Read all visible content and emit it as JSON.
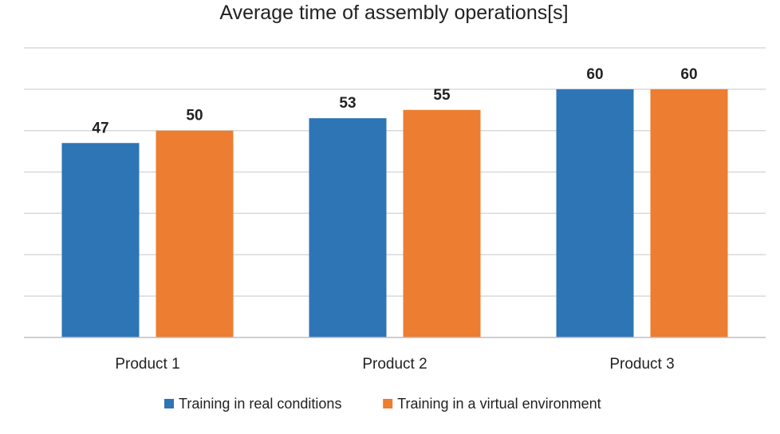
{
  "chart_data": {
    "type": "bar",
    "title": "Average time of assembly operations[s]",
    "xlabel": "",
    "ylabel": "",
    "categories": [
      "Product 1",
      "Product 2",
      "Product 3"
    ],
    "series": [
      {
        "name": "Training in real conditions",
        "color": "#2e75b6",
        "values": [
          47,
          53,
          60
        ],
        "labels": [
          "47",
          "53",
          "60"
        ]
      },
      {
        "name": "Training in a virtual environment",
        "color": "#ed7d31",
        "values": [
          50,
          55,
          60
        ],
        "labels": [
          "50",
          "55",
          "60"
        ]
      }
    ],
    "ylim": [
      0,
      70
    ],
    "grid": true,
    "y_ticks_shown": false,
    "legend_position": "bottom",
    "gridline_color": "#d9d9d9"
  }
}
